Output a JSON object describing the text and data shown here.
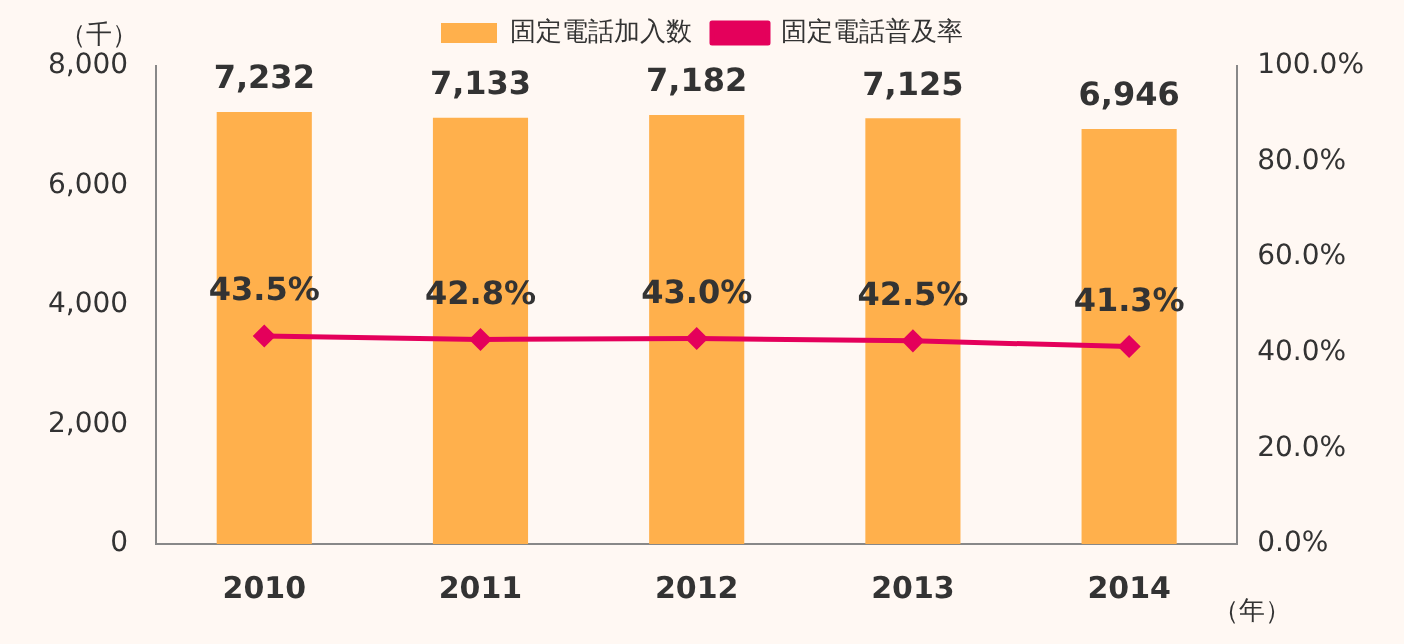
{
  "chart_data": {
    "type": "bar",
    "categories": [
      "2010",
      "2011",
      "2012",
      "2013",
      "2014"
    ],
    "series": [
      {
        "name": "固定電話加入数",
        "color": "#ffb04c",
        "values": [
          7232,
          7133,
          7182,
          7125,
          6946
        ],
        "value_labels": [
          "7,232",
          "7,133",
          "7,182",
          "7,125",
          "6,946"
        ]
      },
      {
        "name": "固定電話普及率",
        "type": "line",
        "axis": "y2",
        "color": "#e4005b",
        "marker": "diamond",
        "values": [
          43.5,
          42.8,
          43.0,
          42.5,
          41.3
        ],
        "value_labels": [
          "43.5%",
          "42.8%",
          "43.0%",
          "42.5%",
          "41.3%"
        ]
      }
    ],
    "ylabel": "（千）",
    "xlabel": "（年）",
    "ylim": [
      0,
      8000
    ],
    "yticks": [
      {
        "value": 0,
        "label": "0"
      },
      {
        "value": 2000,
        "label": "2,000"
      },
      {
        "value": 4000,
        "label": "4,000"
      },
      {
        "value": 6000,
        "label": "6,000"
      },
      {
        "value": 8000,
        "label": "8,000"
      }
    ],
    "y2lim": [
      0,
      100
    ],
    "y2ticks": [
      {
        "value": 0,
        "label": "0.0%"
      },
      {
        "value": 20,
        "label": "20.0%"
      },
      {
        "value": 40,
        "label": "40.0%"
      },
      {
        "value": 60,
        "label": "60.0%"
      },
      {
        "value": 80,
        "label": "80.0%"
      },
      {
        "value": 100,
        "label": "100.0%"
      }
    ],
    "grid": false,
    "legend": "top"
  }
}
